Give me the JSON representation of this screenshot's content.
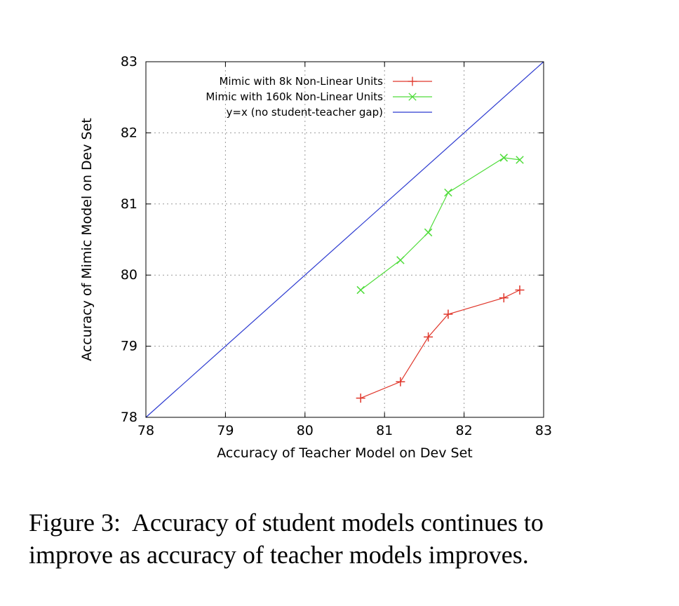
{
  "figure_caption": {
    "line1": "Figure 3:  Accuracy of student models continues to",
    "line2": "improve as accuracy of teacher models improves."
  },
  "chart_data": {
    "type": "scatter",
    "title": "",
    "xlabel": "Accuracy of Teacher Model on Dev Set",
    "ylabel": "Accuracy of Mimic Model on Dev Set",
    "xlim": [
      78,
      83
    ],
    "ylim": [
      78,
      83
    ],
    "xticks": [
      78,
      79,
      80,
      81,
      82,
      83
    ],
    "yticks": [
      78,
      79,
      80,
      81,
      82,
      83
    ],
    "grid": true,
    "grid_style": "dotted",
    "legend_position": "top-left-inside",
    "series": [
      {
        "name": "Mimic with 8k Non-Linear Units",
        "color": "#e0362a",
        "marker": "plus",
        "points": [
          [
            80.7,
            78.27
          ],
          [
            81.2,
            78.5
          ],
          [
            81.55,
            79.13
          ],
          [
            81.8,
            79.45
          ],
          [
            82.5,
            79.68
          ],
          [
            82.7,
            79.79
          ]
        ]
      },
      {
        "name": "Mimic with 160k Non-Linear Units",
        "color": "#4fdc3a",
        "marker": "x",
        "points": [
          [
            80.7,
            79.79
          ],
          [
            81.2,
            80.21
          ],
          [
            81.55,
            80.6
          ],
          [
            81.8,
            81.16
          ],
          [
            82.5,
            81.65
          ],
          [
            82.7,
            81.62
          ]
        ]
      },
      {
        "name": "y=x (no student-teacher gap)",
        "color": "#2c3ad0",
        "marker": "none",
        "points": [
          [
            78,
            78
          ],
          [
            83,
            83
          ]
        ]
      }
    ]
  }
}
